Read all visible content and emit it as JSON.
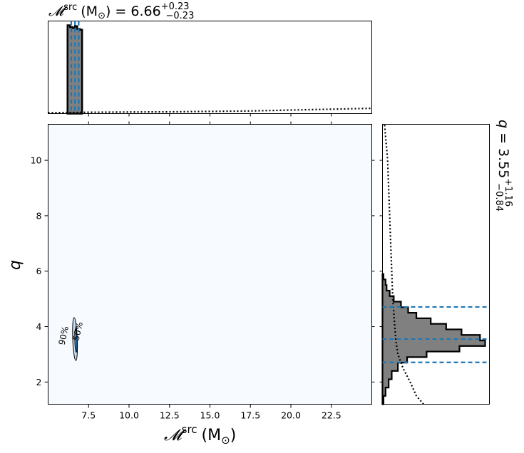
{
  "chart_data": {
    "type": "corner-plot",
    "main_panel": {
      "type": "heatmap",
      "x_param": "chirp mass (source frame)",
      "y_param": "q",
      "xlim": [
        5.0,
        25.0
      ],
      "ylim": [
        1.2,
        11.3
      ],
      "xticks": [
        "7.5",
        "10.0",
        "12.5",
        "15.0",
        "17.5",
        "20.0",
        "22.5"
      ],
      "yticks": [
        "2",
        "4",
        "6",
        "8",
        "10"
      ],
      "contour_labels": [
        "90%",
        "50%"
      ],
      "contours": [
        {
          "label": "90%",
          "center": [
            6.66,
            3.55
          ],
          "width": 0.28,
          "height": 1.55,
          "tilt": -0.04
        },
        {
          "label": "50%",
          "center": [
            6.72,
            3.5
          ],
          "width": 0.14,
          "height": 0.85,
          "tilt": -0.03
        }
      ],
      "colormap": "Blues"
    },
    "x_marginal": {
      "title_symbol": "𝓜",
      "title_sup": "src",
      "title_unit": "(M",
      "title_unit_sub": "⊙",
      "title_unit_close": ")",
      "title_equals": "= 6.66",
      "title_plus": "+0.23",
      "title_minus": "−0.23",
      "median": 6.66,
      "lower": 6.43,
      "upper": 6.89,
      "hist_edges": [
        6.2,
        6.35,
        6.5,
        6.65,
        6.8,
        6.95,
        7.1
      ],
      "hist_values": [
        1.0,
        0.98,
        0.97,
        0.99,
        0.96,
        0.95
      ],
      "prior": [
        [
          5.0,
          0.01
        ],
        [
          7.5,
          0.015
        ],
        [
          10.0,
          0.018
        ],
        [
          12.5,
          0.02
        ],
        [
          15.0,
          0.025
        ],
        [
          17.5,
          0.03
        ],
        [
          20.0,
          0.04
        ],
        [
          22.5,
          0.05
        ],
        [
          25.0,
          0.06
        ]
      ]
    },
    "y_marginal": {
      "title_symbol": "q",
      "title_equals": "= 3.55",
      "title_plus": "+1.16",
      "title_minus": "−0.84",
      "median": 3.55,
      "lower": 2.71,
      "upper": 4.71,
      "hist_edges": [
        1.2,
        1.5,
        1.8,
        2.1,
        2.4,
        2.7,
        2.9,
        3.1,
        3.3,
        3.5,
        3.7,
        3.9,
        4.1,
        4.3,
        4.5,
        4.7,
        4.9,
        5.1,
        5.3,
        5.5,
        5.7,
        5.9
      ],
      "hist_values": [
        0.01,
        0.03,
        0.06,
        0.09,
        0.15,
        0.24,
        0.43,
        0.75,
        1.0,
        0.95,
        0.77,
        0.62,
        0.47,
        0.33,
        0.25,
        0.18,
        0.11,
        0.07,
        0.04,
        0.03,
        0.01
      ],
      "prior": [
        [
          1.2,
          0.4
        ],
        [
          1.5,
          0.33
        ],
        [
          2.0,
          0.27
        ],
        [
          2.5,
          0.2
        ],
        [
          3.0,
          0.15
        ],
        [
          3.5,
          0.13
        ],
        [
          4.0,
          0.12
        ],
        [
          5.0,
          0.1
        ],
        [
          6.0,
          0.09
        ],
        [
          7.0,
          0.08
        ],
        [
          8.0,
          0.07
        ],
        [
          9.0,
          0.06
        ],
        [
          10.0,
          0.05
        ],
        [
          11.3,
          0.02
        ]
      ]
    },
    "x_label": {
      "symbol": "𝓜",
      "sup": "src",
      "unit": "(M",
      "unit_sub": "⊙",
      "unit_close": ")"
    },
    "y_label": "q",
    "colors": {
      "background_map": "#f7fbff",
      "contour_fill_outer": "#c6dbef",
      "contour_fill_mid": "#6baed6",
      "contour_fill_inner": "#08519c",
      "hist_fill": "#808080",
      "quantile_line": "#1f77b4"
    }
  }
}
